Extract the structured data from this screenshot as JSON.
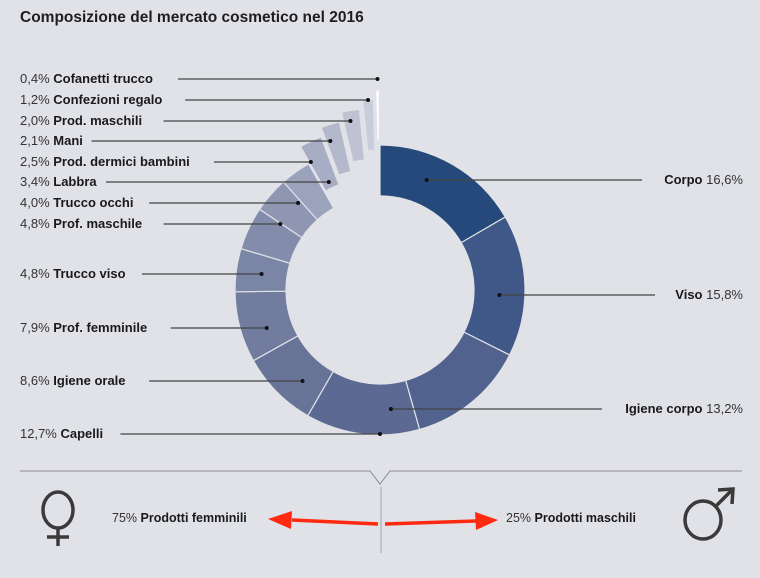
{
  "title": "Composizione del mercato cosmetico nel 2016",
  "chart_data": {
    "type": "pie",
    "variant": "donut",
    "title": "Composizione del mercato cosmetico nel 2016",
    "unit": "%",
    "slices": [
      {
        "label": "Corpo",
        "value": 16.6,
        "display": "16,6%",
        "color": "#24497a",
        "side": "right",
        "labelY": 180
      },
      {
        "label": "Viso",
        "value": 15.8,
        "display": "15,8%",
        "color": "#405887",
        "side": "right",
        "labelY": 295
      },
      {
        "label": "Igiene corpo",
        "value": 13.2,
        "display": "13,2%",
        "color": "#52628e",
        "side": "right",
        "labelY": 409
      },
      {
        "label": "Capelli",
        "value": 12.7,
        "display": "12,7%",
        "color": "#5c6993",
        "side": "left",
        "labelY": 434
      },
      {
        "label": "Igiene orale",
        "value": 8.6,
        "display": "8,6%",
        "color": "#687398",
        "side": "left",
        "labelY": 381
      },
      {
        "label": "Prof. femminile",
        "value": 7.9,
        "display": "7,9%",
        "color": "#717c9f",
        "side": "left",
        "labelY": 328
      },
      {
        "label": "Trucco viso",
        "value": 4.8,
        "display": "4,8%",
        "color": "#7b85a6",
        "side": "left",
        "labelY": 274
      },
      {
        "label": "Prof. maschile",
        "value": 4.8,
        "display": "4,8%",
        "color": "#838cab",
        "side": "left",
        "labelY": 224
      },
      {
        "label": "Trucco occhi",
        "value": 4.0,
        "display": "4,0%",
        "color": "#8e96b2",
        "side": "left",
        "labelY": 203
      },
      {
        "label": "Labbra",
        "value": 3.4,
        "display": "3,4%",
        "color": "#9ba2bb",
        "side": "left",
        "labelY": 182
      },
      {
        "label": "Prod. dermici bambini",
        "value": 2.5,
        "display": "2,5%",
        "color": "#a7adc4",
        "side": "left",
        "labelY": 162,
        "exploded": 1
      },
      {
        "label": "Mani",
        "value": 2.1,
        "display": "2,1%",
        "color": "#b3b8cb",
        "side": "left",
        "labelY": 141,
        "exploded": 2
      },
      {
        "label": "Prod. maschili",
        "value": 2.0,
        "display": "2,0%",
        "color": "#bec2d3",
        "side": "left",
        "labelY": 121,
        "exploded": 3
      },
      {
        "label": "Confezioni regalo",
        "value": 1.2,
        "display": "1,2%",
        "color": "#c9ccdb",
        "side": "left",
        "labelY": 100,
        "exploded": 4
      },
      {
        "label": "Cofanetti trucco",
        "value": 0.4,
        "display": "0,4%",
        "color": "#ffffff",
        "side": "left",
        "labelY": 79,
        "exploded": 5
      }
    ],
    "legend_position": "labels-beside",
    "gender_split": [
      {
        "label": "Prodotti femminili",
        "value": 75,
        "display": "75%",
        "icon": "female-symbol-icon"
      },
      {
        "label": "Prodotti maschili",
        "value": 25,
        "display": "25%",
        "icon": "male-symbol-icon"
      }
    ]
  },
  "bottom": {
    "female_pct": "75%",
    "female_label": "Prodotti femminili",
    "male_pct": "25%",
    "male_label": "Prodotti maschili",
    "arrow_color": "#ff2a0f",
    "female_symbol": "♀",
    "male_symbol": "♂"
  }
}
